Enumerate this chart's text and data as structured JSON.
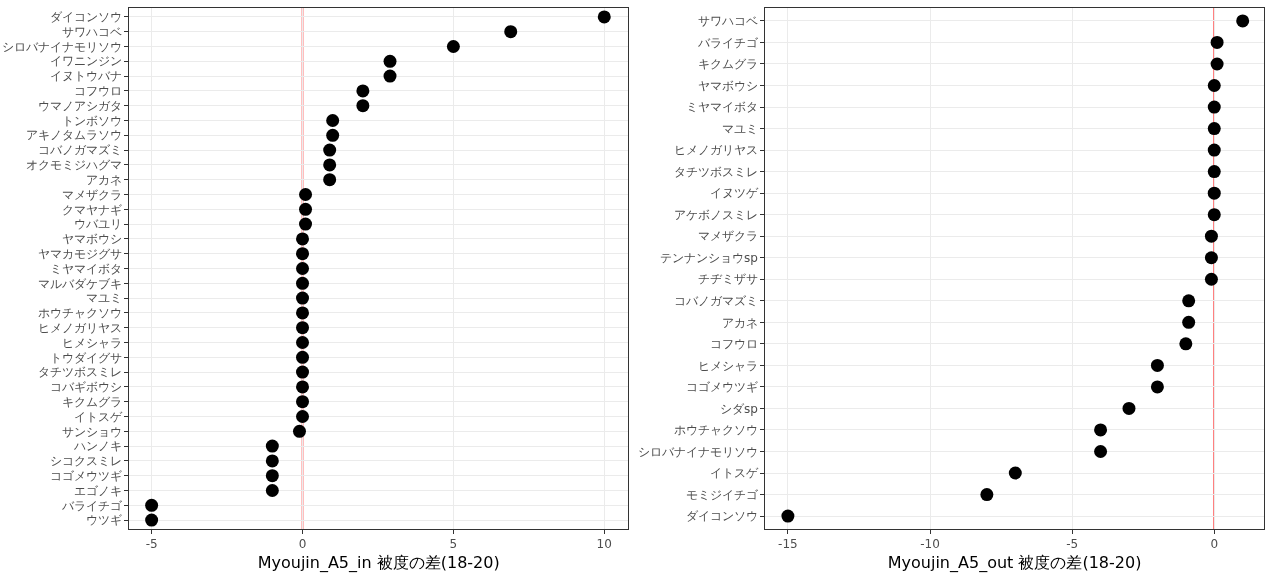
{
  "chart_data": [
    {
      "type": "scatter",
      "orientation": "horizontal",
      "xlabel": "Myoujin_A5_in 被度の差(18-20)",
      "categories": [
        "ダイコンソウ",
        "サワハコベ",
        "シロバナイナモリソウ",
        "イワニンジン",
        "イヌトウバナ",
        "コフウロ",
        "ウマノアシガタ",
        "トンボソウ",
        "アキノタムラソウ",
        "コバノガマズミ",
        "オクモミジハグマ",
        "アカネ",
        "マメザクラ",
        "クマヤナギ",
        "ウバユリ",
        "ヤマボウシ",
        "ヤマカモジグサ",
        "ミヤマイボタ",
        "マルバダケブキ",
        "マユミ",
        "ホウチャクソウ",
        "ヒメノガリヤス",
        "ヒメシャラ",
        "トウダイグサ",
        "タチツボスミレ",
        "コバギボウシ",
        "キクムグラ",
        "イトスゲ",
        "サンショウ",
        "ハンノキ",
        "シコクスミレ",
        "コゴメウツギ",
        "エゴノキ",
        "バライチゴ",
        "ウツギ"
      ],
      "series": [
        {
          "color": "#000000",
          "values": [
            10,
            6.9,
            5,
            2.9,
            2.9,
            2,
            2,
            1,
            1,
            0.9,
            0.9,
            0.9,
            0.1,
            0.1,
            0.1,
            0,
            0,
            0,
            0,
            0,
            0,
            0,
            0,
            0,
            0,
            0,
            0,
            0,
            -0.1,
            -1,
            -1,
            -1,
            -1,
            -5,
            -5
          ]
        }
      ],
      "xlim": [
        -5.75,
        10.8
      ],
      "xticks": [
        -5,
        0,
        5,
        10
      ],
      "grid": true,
      "marker": "circle",
      "ref_lines": [
        {
          "axis": "x",
          "value": 0,
          "color": "#ff0000"
        }
      ]
    },
    {
      "type": "scatter",
      "orientation": "horizontal",
      "xlabel": "Myoujin_A5_out 被度の差(18-20)",
      "categories": [
        "サワハコベ",
        "バライチゴ",
        "キクムグラ",
        "ヤマボウシ",
        "ミヤマイボタ",
        "マユミ",
        "ヒメノガリヤス",
        "タチツボスミレ",
        "イヌツゲ",
        "アケボノスミレ",
        "マメザクラ",
        "テンナンショウsp",
        "チヂミザサ",
        "コバノガマズミ",
        "アカネ",
        "コフウロ",
        "ヒメシャラ",
        "コゴメウツギ",
        "シダsp",
        "ホウチャクソウ",
        "シロバナイナモリソウ",
        "イトスゲ",
        "モミジイチゴ",
        "ダイコンソウ"
      ],
      "series": [
        {
          "color": "#000000",
          "values": [
            1,
            0.1,
            0.1,
            0,
            0,
            0,
            0,
            0,
            0,
            0,
            -0.1,
            -0.1,
            -0.1,
            -0.9,
            -0.9,
            -1,
            -2,
            -2,
            -3,
            -4,
            -4,
            -7,
            -8,
            -15
          ]
        }
      ],
      "xlim": [
        -15.8,
        1.75
      ],
      "xticks": [
        -15,
        -10,
        -5,
        0
      ],
      "grid": true,
      "marker": "circle",
      "ref_lines": [
        {
          "axis": "x",
          "value": 0,
          "color": "#ff0000"
        }
      ]
    }
  ]
}
